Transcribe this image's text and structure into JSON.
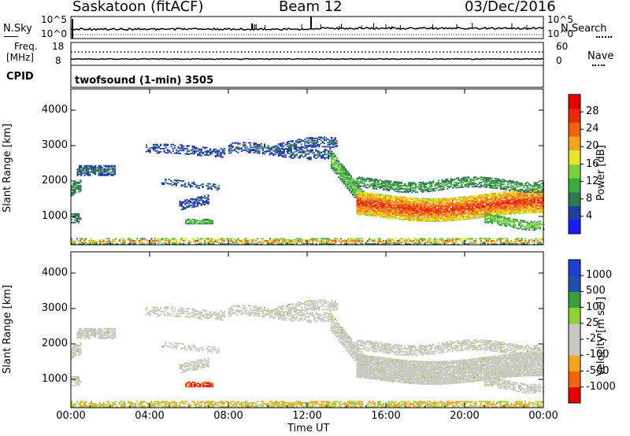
{
  "header": {
    "station": "Saskatoon (fitACF)",
    "beam": "Beam 12",
    "date": "03/Dec/2016"
  },
  "top_panels": {
    "nsky_label": "N.Sky",
    "nsearch_label": "N.Search",
    "exp_high": "10^5",
    "exp_low": "10^0",
    "freq_label": "Freq.",
    "freq_unit": "[MHz]",
    "freq_ticks": [
      "18",
      "8"
    ],
    "nave_label": "Nave",
    "nave_ticks": [
      "60",
      "0"
    ],
    "cpid_label": "CPID",
    "cpid_text": "twofsound (1-min) 3505"
  },
  "colors": {
    "power": [
      "#1a1aff",
      "#1f3fa0",
      "#2f7a4f",
      "#3daa3d",
      "#7ad13a",
      "#e6e62e",
      "#f2a51d",
      "#f06414",
      "#e62a0a",
      "#e60000"
    ],
    "velocity": [
      "#e60000",
      "#f06414",
      "#f2a51d",
      "#c8c8c0",
      "#c8c8c0",
      "#8ed23b",
      "#3c9e3c",
      "#1f4fa8",
      "#1f3fd0"
    ],
    "ground_scatter": "#c8c8c0"
  },
  "chart_data": [
    {
      "type": "heatmap",
      "panel": "power",
      "ylabel": "Slant Range [km]",
      "xlabel": "Time UT",
      "x_ticks": [
        "00:00",
        "04:00",
        "08:00",
        "12:00",
        "16:00",
        "20:00",
        "00:00"
      ],
      "y_ticks": [
        "1000",
        "2000",
        "3000",
        "4000"
      ],
      "ylim": [
        200,
        4600
      ],
      "colorbar_label": "Power [dB]",
      "colorbar_ticks": [
        "4",
        "8",
        "12",
        "16",
        "20",
        "24",
        "28"
      ],
      "colorbar_range": [
        0,
        32
      ]
    },
    {
      "type": "heatmap",
      "panel": "velocity",
      "ylabel": "Slant Range [km]",
      "xlabel": "Time UT",
      "x_ticks": [
        "00:00",
        "04:00",
        "08:00",
        "12:00",
        "16:00",
        "20:00",
        "00:00"
      ],
      "y_ticks": [
        "1000",
        "2000",
        "3000",
        "4000"
      ],
      "ylim": [
        200,
        4600
      ],
      "colorbar_label": "Velocity [m s⁻¹]",
      "colorbar_ticks": [
        "1000",
        "500",
        "100",
        "25",
        "-25",
        "-100",
        "-500",
        "-1000"
      ]
    }
  ]
}
